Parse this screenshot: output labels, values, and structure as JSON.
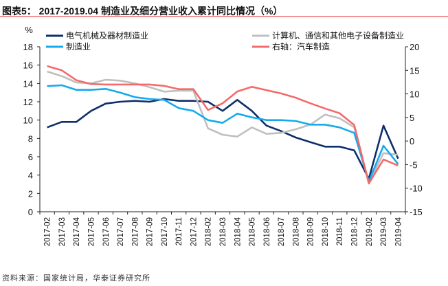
{
  "title": "图表5： 2017-2019.04 制造业及细分营业收入累计同比情况（%）",
  "source": "资料来源：国家统计局，华泰证券研究所",
  "chart_data": {
    "type": "line",
    "ylabel": "%",
    "categories": [
      "2017-02",
      "2017-03",
      "2017-04",
      "2017-05",
      "2017-06",
      "2017-07",
      "2017-08",
      "2017-09",
      "2017-10",
      "2017-11",
      "2017-12",
      "2018-02",
      "2018-03",
      "2018-04",
      "2018-05",
      "2018-06",
      "2018-07",
      "2018-08",
      "2018-09",
      "2018-10",
      "2018-11",
      "2018-12",
      "2019-02",
      "2019-03",
      "2019-04"
    ],
    "ylim": [
      0,
      18
    ],
    "yticks": [
      18,
      16,
      14,
      12,
      10,
      8,
      6,
      4,
      2,
      0
    ],
    "y2lim": [
      -15,
      20
    ],
    "y2ticks": [
      20,
      15,
      10,
      5,
      0,
      -5,
      -10,
      -15
    ],
    "legend": "top",
    "series": [
      {
        "name": "电气机械及器材制造业",
        "color": "#0d2f6b",
        "axis": "left",
        "values": [
          9.2,
          9.8,
          9.8,
          11.0,
          11.8,
          12.0,
          12.1,
          12.0,
          12.3,
          12.1,
          12.1,
          12.0,
          11.0,
          12.2,
          11.0,
          9.4,
          8.8,
          8.1,
          7.6,
          7.1,
          7.1,
          6.7,
          3.6,
          9.4,
          5.8
        ]
      },
      {
        "name": "计算机、通信和其他电子设备制造业",
        "color": "#bfbfbf",
        "axis": "left",
        "values": [
          15.3,
          14.8,
          14.1,
          14.0,
          14.4,
          14.3,
          14.0,
          13.6,
          13.1,
          13.2,
          13.2,
          9.1,
          8.4,
          8.2,
          9.2,
          8.5,
          8.6,
          9.0,
          9.5,
          10.6,
          10.2,
          9.2,
          3.2,
          6.4,
          6.2
        ]
      },
      {
        "name": "制造业",
        "color": "#15aaee",
        "axis": "left",
        "values": [
          13.7,
          13.8,
          13.3,
          13.3,
          13.4,
          13.0,
          12.5,
          12.3,
          12.2,
          11.3,
          11.0,
          10.0,
          9.7,
          10.7,
          10.3,
          10.0,
          10.0,
          9.9,
          9.5,
          9.5,
          9.2,
          8.6,
          3.3,
          7.2,
          5.2
        ]
      },
      {
        "name": "右轴：汽车制造",
        "color": "#f46a6a",
        "axis": "right",
        "values": [
          15.9,
          15.0,
          12.9,
          12.1,
          12.0,
          12.0,
          12.0,
          12.0,
          11.7,
          11.0,
          11.0,
          6.6,
          8.0,
          10.5,
          11.5,
          10.8,
          10.1,
          9.2,
          8.0,
          6.9,
          5.9,
          3.4,
          -9.0,
          -3.9,
          -5.2
        ]
      }
    ]
  }
}
